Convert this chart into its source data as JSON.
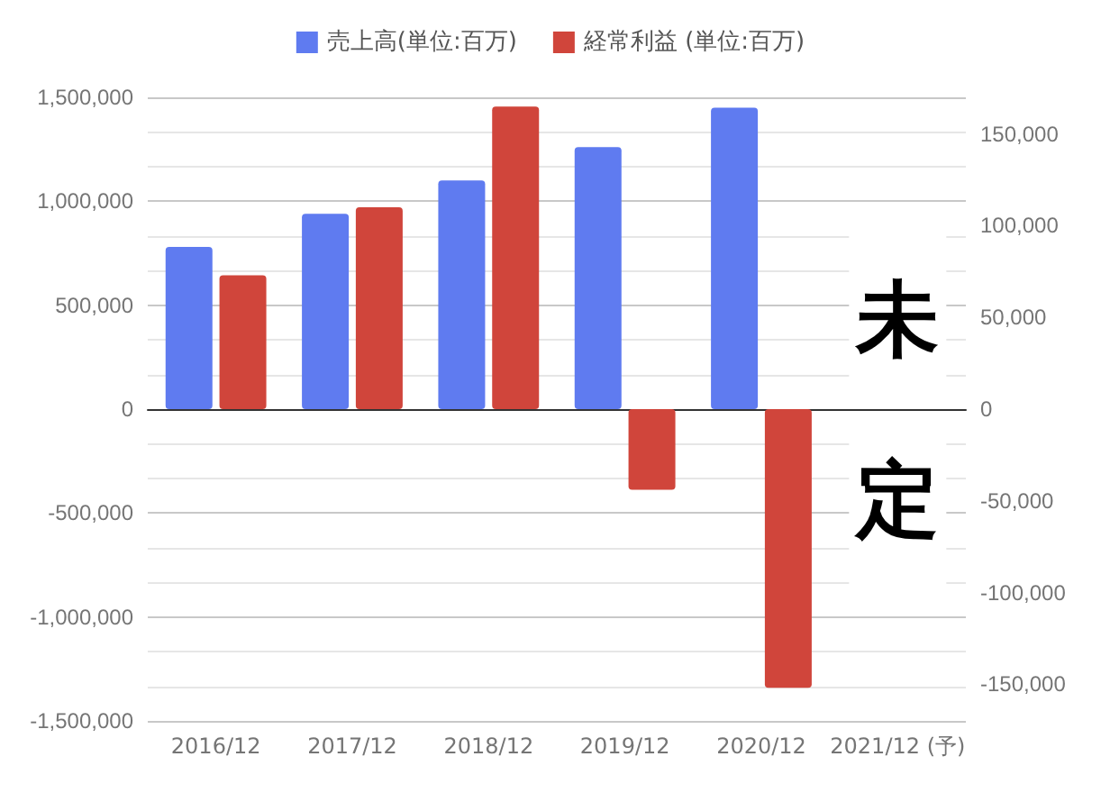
{
  "chart_data": {
    "type": "bar",
    "categories": [
      "2016/12",
      "2017/12",
      "2018/12",
      "2019/12",
      "2020/12",
      "2021/12 (予)"
    ],
    "series": [
      {
        "name": "売上高(単位:百万)",
        "color": "#5f7bf0",
        "values": [
          780000,
          940000,
          1100000,
          1260000,
          1450000,
          null
        ]
      },
      {
        "name": "経常利益 (単位:百万)",
        "color": "#d0453b",
        "axis": "y2",
        "values": [
          73000,
          110000,
          165000,
          -44000,
          -152000,
          null
        ]
      }
    ],
    "ylim": [
      -1500000,
      1500000
    ],
    "yticks": [
      {
        "value": -1500000,
        "label": "-1,500,000"
      },
      {
        "value": -1000000,
        "label": "-1,000,000"
      },
      {
        "value": -500000,
        "label": "-500,000"
      },
      0,
      {
        "value": 500000,
        "label": "500,000"
      },
      {
        "value": 1000000,
        "label": "1,000,000"
      },
      {
        "value": 1500000,
        "label": "1,500,000"
      }
    ],
    "y2lim": [
      -170000,
      170000
    ],
    "y2ticks": [
      {
        "value": -150000,
        "label": "-150,000"
      },
      {
        "value": -100000,
        "label": "-100,000"
      },
      {
        "value": -50000,
        "label": "-50,000"
      },
      0,
      {
        "value": 50000,
        "label": "50,000"
      },
      {
        "value": 100000,
        "label": "100,000"
      },
      {
        "value": 150000,
        "label": "150,000"
      }
    ],
    "annotations": [
      "未定"
    ],
    "grid": "y",
    "legend": "top"
  }
}
